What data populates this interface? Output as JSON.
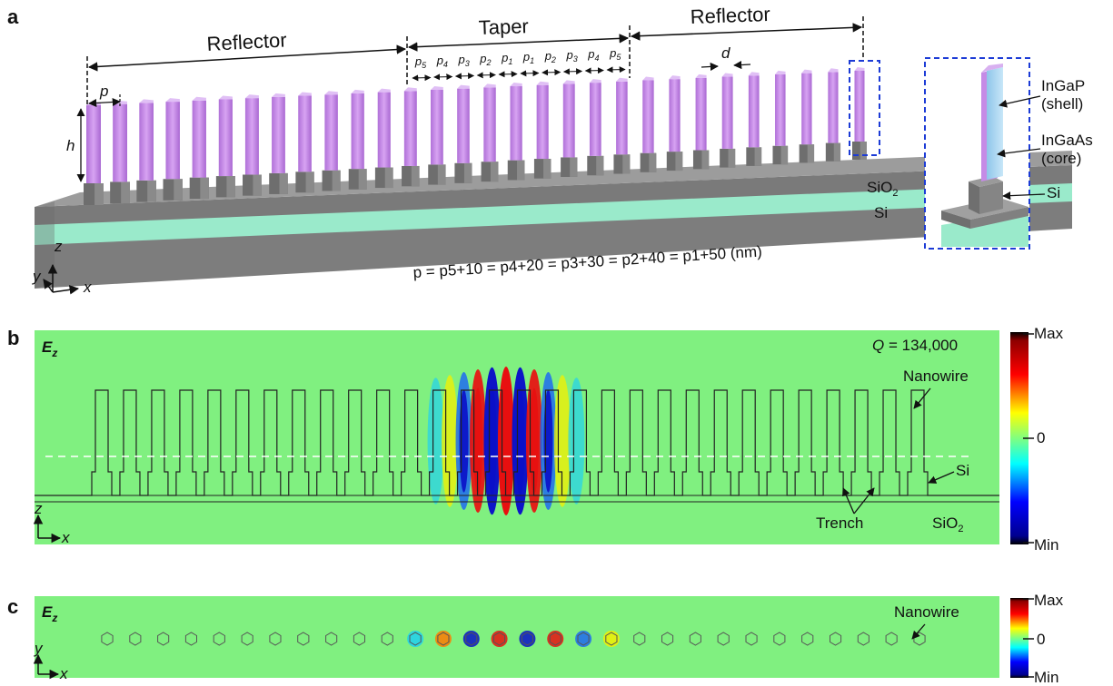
{
  "panel_a": {
    "letter": "a",
    "reflector_left": "Reflector",
    "taper": "Taper",
    "reflector_right": "Reflector",
    "p_label": "p",
    "h_label": "h",
    "d_label": "d",
    "taper_periods": [
      "p5",
      "p4",
      "p3",
      "p2",
      "p1",
      "p1",
      "p2",
      "p3",
      "p4",
      "p5"
    ],
    "sio2": "SiO",
    "sio2_sub": "2",
    "si": "Si",
    "equation": "p = p5+10 = p4+20 = p3+30 = p2+40 = p1+50 (nm)",
    "axis_z": "z",
    "axis_y": "y",
    "axis_x": "x",
    "inset": {
      "ingap": "InGaP",
      "shell": "(shell)",
      "ingaas": "InGaAs",
      "core": "(core)",
      "si": "Si"
    },
    "colors": {
      "nanowire": "#c58be6",
      "core": "#a6d4ee",
      "pedestal": "#7a7a7a",
      "sio2": "#92e8c4",
      "si": "#8c8c8c",
      "inset_border": "#1c3bd6"
    }
  },
  "panel_b": {
    "letter": "b",
    "field": "E",
    "field_sub": "z",
    "q_label": "Q",
    "q_value": "= 134,000",
    "nanowire": "Nanowire",
    "si": "Si",
    "trench": "Trench",
    "sio2": "SiO",
    "sio2_sub": "2",
    "axis_z": "z",
    "axis_x": "x",
    "colorbar": {
      "max": "Max",
      "zero": "0",
      "min": "Min"
    }
  },
  "panel_c": {
    "letter": "c",
    "field": "E",
    "field_sub": "z",
    "nanowire": "Nanowire",
    "axis_y": "y",
    "axis_x": "x",
    "colorbar": {
      "max": "Max",
      "zero": "0",
      "min": "Min"
    }
  }
}
